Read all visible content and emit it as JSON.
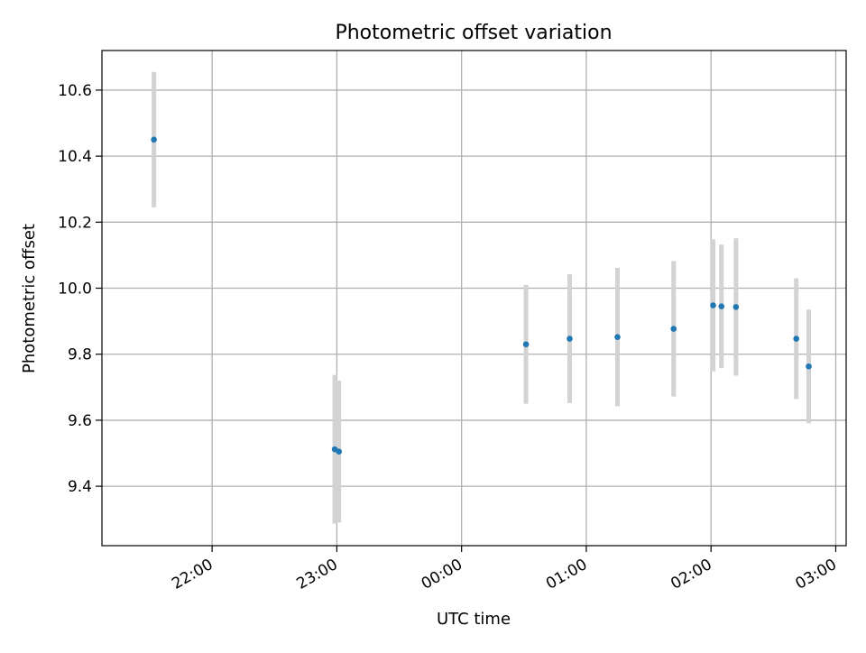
{
  "chart_data": {
    "type": "scatter",
    "title": "Photometric offset variation",
    "xlabel": "UTC time",
    "ylabel": "Photometric offset",
    "xlim": [
      "21:07",
      "03:05"
    ],
    "ylim": [
      9.22,
      10.72
    ],
    "yticks": [
      "9.4",
      "9.6",
      "9.8",
      "10.0",
      "10.2",
      "10.4",
      "10.6"
    ],
    "xticks": [
      "22:00",
      "23:00",
      "00:00",
      "01:00",
      "02:00",
      "03:00"
    ],
    "grid": true,
    "colors": {
      "marker": "#1f77b4",
      "errorbar": "#d3d3d3",
      "grid": "#b0b0b0"
    },
    "series": [
      {
        "points": [
          {
            "t": "21:32",
            "y": 10.45,
            "err": 0.205
          },
          {
            "t": "22:59",
            "y": 9.512,
            "err": 0.225
          },
          {
            "t": "23:01",
            "y": 9.505,
            "err": 0.215
          },
          {
            "t": "00:31",
            "y": 9.83,
            "err": 0.18
          },
          {
            "t": "00:52",
            "y": 9.847,
            "err": 0.195
          },
          {
            "t": "01:15",
            "y": 9.852,
            "err": 0.21
          },
          {
            "t": "01:42",
            "y": 9.877,
            "err": 0.205
          },
          {
            "t": "02:01",
            "y": 9.948,
            "err": 0.2
          },
          {
            "t": "02:05",
            "y": 9.945,
            "err": 0.187
          },
          {
            "t": "02:12",
            "y": 9.943,
            "err": 0.208
          },
          {
            "t": "02:41",
            "y": 9.847,
            "err": 0.183
          },
          {
            "t": "02:47",
            "y": 9.763,
            "err": 0.172
          }
        ]
      }
    ]
  }
}
